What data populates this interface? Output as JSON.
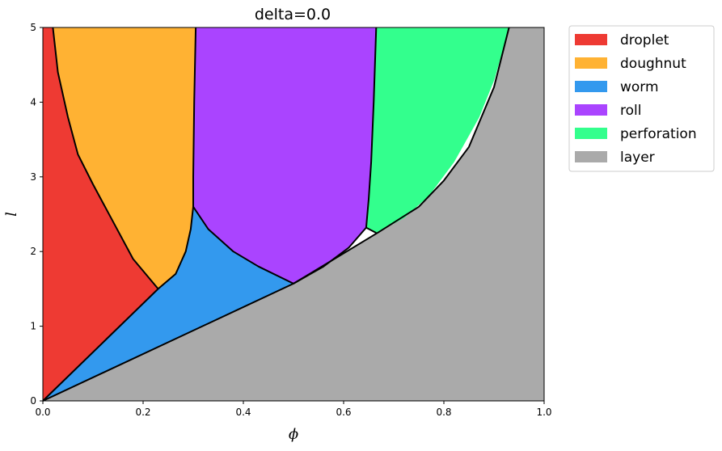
{
  "chart_data": {
    "type": "area",
    "title": "delta=0.0",
    "xlabel": "ϕ",
    "ylabel": "l",
    "xlim": [
      0,
      1
    ],
    "ylim": [
      0,
      5
    ],
    "xticks": [
      "0.0",
      "0.2",
      "0.4",
      "0.6",
      "0.8",
      "1.0"
    ],
    "yticks": [
      "0",
      "1",
      "2",
      "3",
      "4",
      "5"
    ],
    "xtick_values": [
      0,
      0.2,
      0.4,
      0.6,
      0.8,
      1.0
    ],
    "ytick_values": [
      0,
      1,
      2,
      3,
      4,
      5
    ],
    "grid": false,
    "legend_position": "outside-top-right",
    "series": [
      {
        "name": "layer",
        "color": "#aaaaaa",
        "polygon": [
          [
            0,
            0
          ],
          [
            0.5,
            1.57
          ],
          [
            0.67,
            2.26
          ],
          [
            0.75,
            2.6
          ],
          [
            0.8,
            2.95
          ],
          [
            0.85,
            3.4
          ],
          [
            0.9,
            4.2
          ],
          [
            0.93,
            5
          ],
          [
            1,
            5
          ],
          [
            1,
            0
          ]
        ]
      },
      {
        "name": "perforation",
        "color": "#33ff8d",
        "polygon": [
          [
            0.665,
            5
          ],
          [
            0.66,
            4.0
          ],
          [
            0.655,
            3.2
          ],
          [
            0.65,
            2.7
          ],
          [
            0.645,
            2.32
          ],
          [
            0.665,
            2.25
          ],
          [
            0.72,
            2.45
          ],
          [
            0.77,
            2.75
          ],
          [
            0.82,
            3.2
          ],
          [
            0.87,
            3.8
          ],
          [
            0.9,
            4.3
          ],
          [
            0.93,
            5
          ]
        ]
      },
      {
        "name": "roll",
        "color": "#aa44ff",
        "polygon": [
          [
            0.305,
            5
          ],
          [
            0.302,
            4.0
          ],
          [
            0.3,
            3.0
          ],
          [
            0.3,
            2.6
          ],
          [
            0.33,
            2.3
          ],
          [
            0.38,
            2.0
          ],
          [
            0.43,
            1.8
          ],
          [
            0.5,
            1.57
          ],
          [
            0.56,
            1.8
          ],
          [
            0.61,
            2.05
          ],
          [
            0.645,
            2.32
          ],
          [
            0.65,
            2.7
          ],
          [
            0.655,
            3.2
          ],
          [
            0.66,
            4.0
          ],
          [
            0.665,
            5
          ]
        ]
      },
      {
        "name": "worm",
        "color": "#3399ee",
        "polygon": [
          [
            0,
            0
          ],
          [
            0.23,
            1.5
          ],
          [
            0.265,
            1.7
          ],
          [
            0.285,
            2.0
          ],
          [
            0.295,
            2.3
          ],
          [
            0.3,
            2.6
          ],
          [
            0.33,
            2.3
          ],
          [
            0.38,
            2.0
          ],
          [
            0.43,
            1.8
          ],
          [
            0.5,
            1.57
          ]
        ]
      },
      {
        "name": "doughnut",
        "color": "#ffb233",
        "polygon": [
          [
            0.02,
            5
          ],
          [
            0.03,
            4.4
          ],
          [
            0.05,
            3.8
          ],
          [
            0.07,
            3.3
          ],
          [
            0.1,
            2.9
          ],
          [
            0.14,
            2.4
          ],
          [
            0.18,
            1.9
          ],
          [
            0.23,
            1.5
          ],
          [
            0.265,
            1.7
          ],
          [
            0.285,
            2.0
          ],
          [
            0.295,
            2.3
          ],
          [
            0.3,
            2.6
          ],
          [
            0.3,
            3.0
          ],
          [
            0.302,
            4.0
          ],
          [
            0.305,
            5
          ]
        ]
      },
      {
        "name": "droplet",
        "color": "#ee3a33",
        "polygon": [
          [
            0,
            0
          ],
          [
            0,
            5
          ],
          [
            0.02,
            5
          ],
          [
            0.03,
            4.4
          ],
          [
            0.05,
            3.8
          ],
          [
            0.07,
            3.3
          ],
          [
            0.1,
            2.9
          ],
          [
            0.14,
            2.4
          ],
          [
            0.18,
            1.9
          ],
          [
            0.23,
            1.5
          ]
        ]
      }
    ],
    "boundaries": [
      [
        [
          0,
          0
        ],
        [
          0.5,
          1.57
        ],
        [
          0.67,
          2.26
        ],
        [
          0.75,
          2.6
        ],
        [
          0.8,
          2.95
        ],
        [
          0.85,
          3.4
        ],
        [
          0.9,
          4.2
        ],
        [
          0.93,
          5
        ]
      ],
      [
        [
          0,
          0
        ],
        [
          0.23,
          1.5
        ]
      ],
      [
        [
          0.02,
          5
        ],
        [
          0.03,
          4.4
        ],
        [
          0.05,
          3.8
        ],
        [
          0.07,
          3.3
        ],
        [
          0.1,
          2.9
        ],
        [
          0.14,
          2.4
        ],
        [
          0.18,
          1.9
        ],
        [
          0.23,
          1.5
        ],
        [
          0.265,
          1.7
        ],
        [
          0.285,
          2.0
        ],
        [
          0.295,
          2.3
        ],
        [
          0.3,
          2.6
        ],
        [
          0.3,
          3.0
        ],
        [
          0.302,
          4.0
        ],
        [
          0.305,
          5
        ]
      ],
      [
        [
          0.3,
          2.6
        ],
        [
          0.33,
          2.3
        ],
        [
          0.38,
          2.0
        ],
        [
          0.43,
          1.8
        ],
        [
          0.5,
          1.57
        ],
        [
          0.56,
          1.8
        ],
        [
          0.61,
          2.05
        ],
        [
          0.645,
          2.32
        ],
        [
          0.65,
          2.7
        ],
        [
          0.655,
          3.2
        ],
        [
          0.66,
          4.0
        ],
        [
          0.665,
          5
        ]
      ],
      [
        [
          0.645,
          2.32
        ],
        [
          0.665,
          2.25
        ]
      ]
    ],
    "legend": [
      {
        "label": "droplet",
        "color": "#ee3a33"
      },
      {
        "label": "doughnut",
        "color": "#ffb233"
      },
      {
        "label": "worm",
        "color": "#3399ee"
      },
      {
        "label": "roll",
        "color": "#aa44ff"
      },
      {
        "label": "perforation",
        "color": "#33ff8d"
      },
      {
        "label": "layer",
        "color": "#aaaaaa"
      }
    ]
  }
}
